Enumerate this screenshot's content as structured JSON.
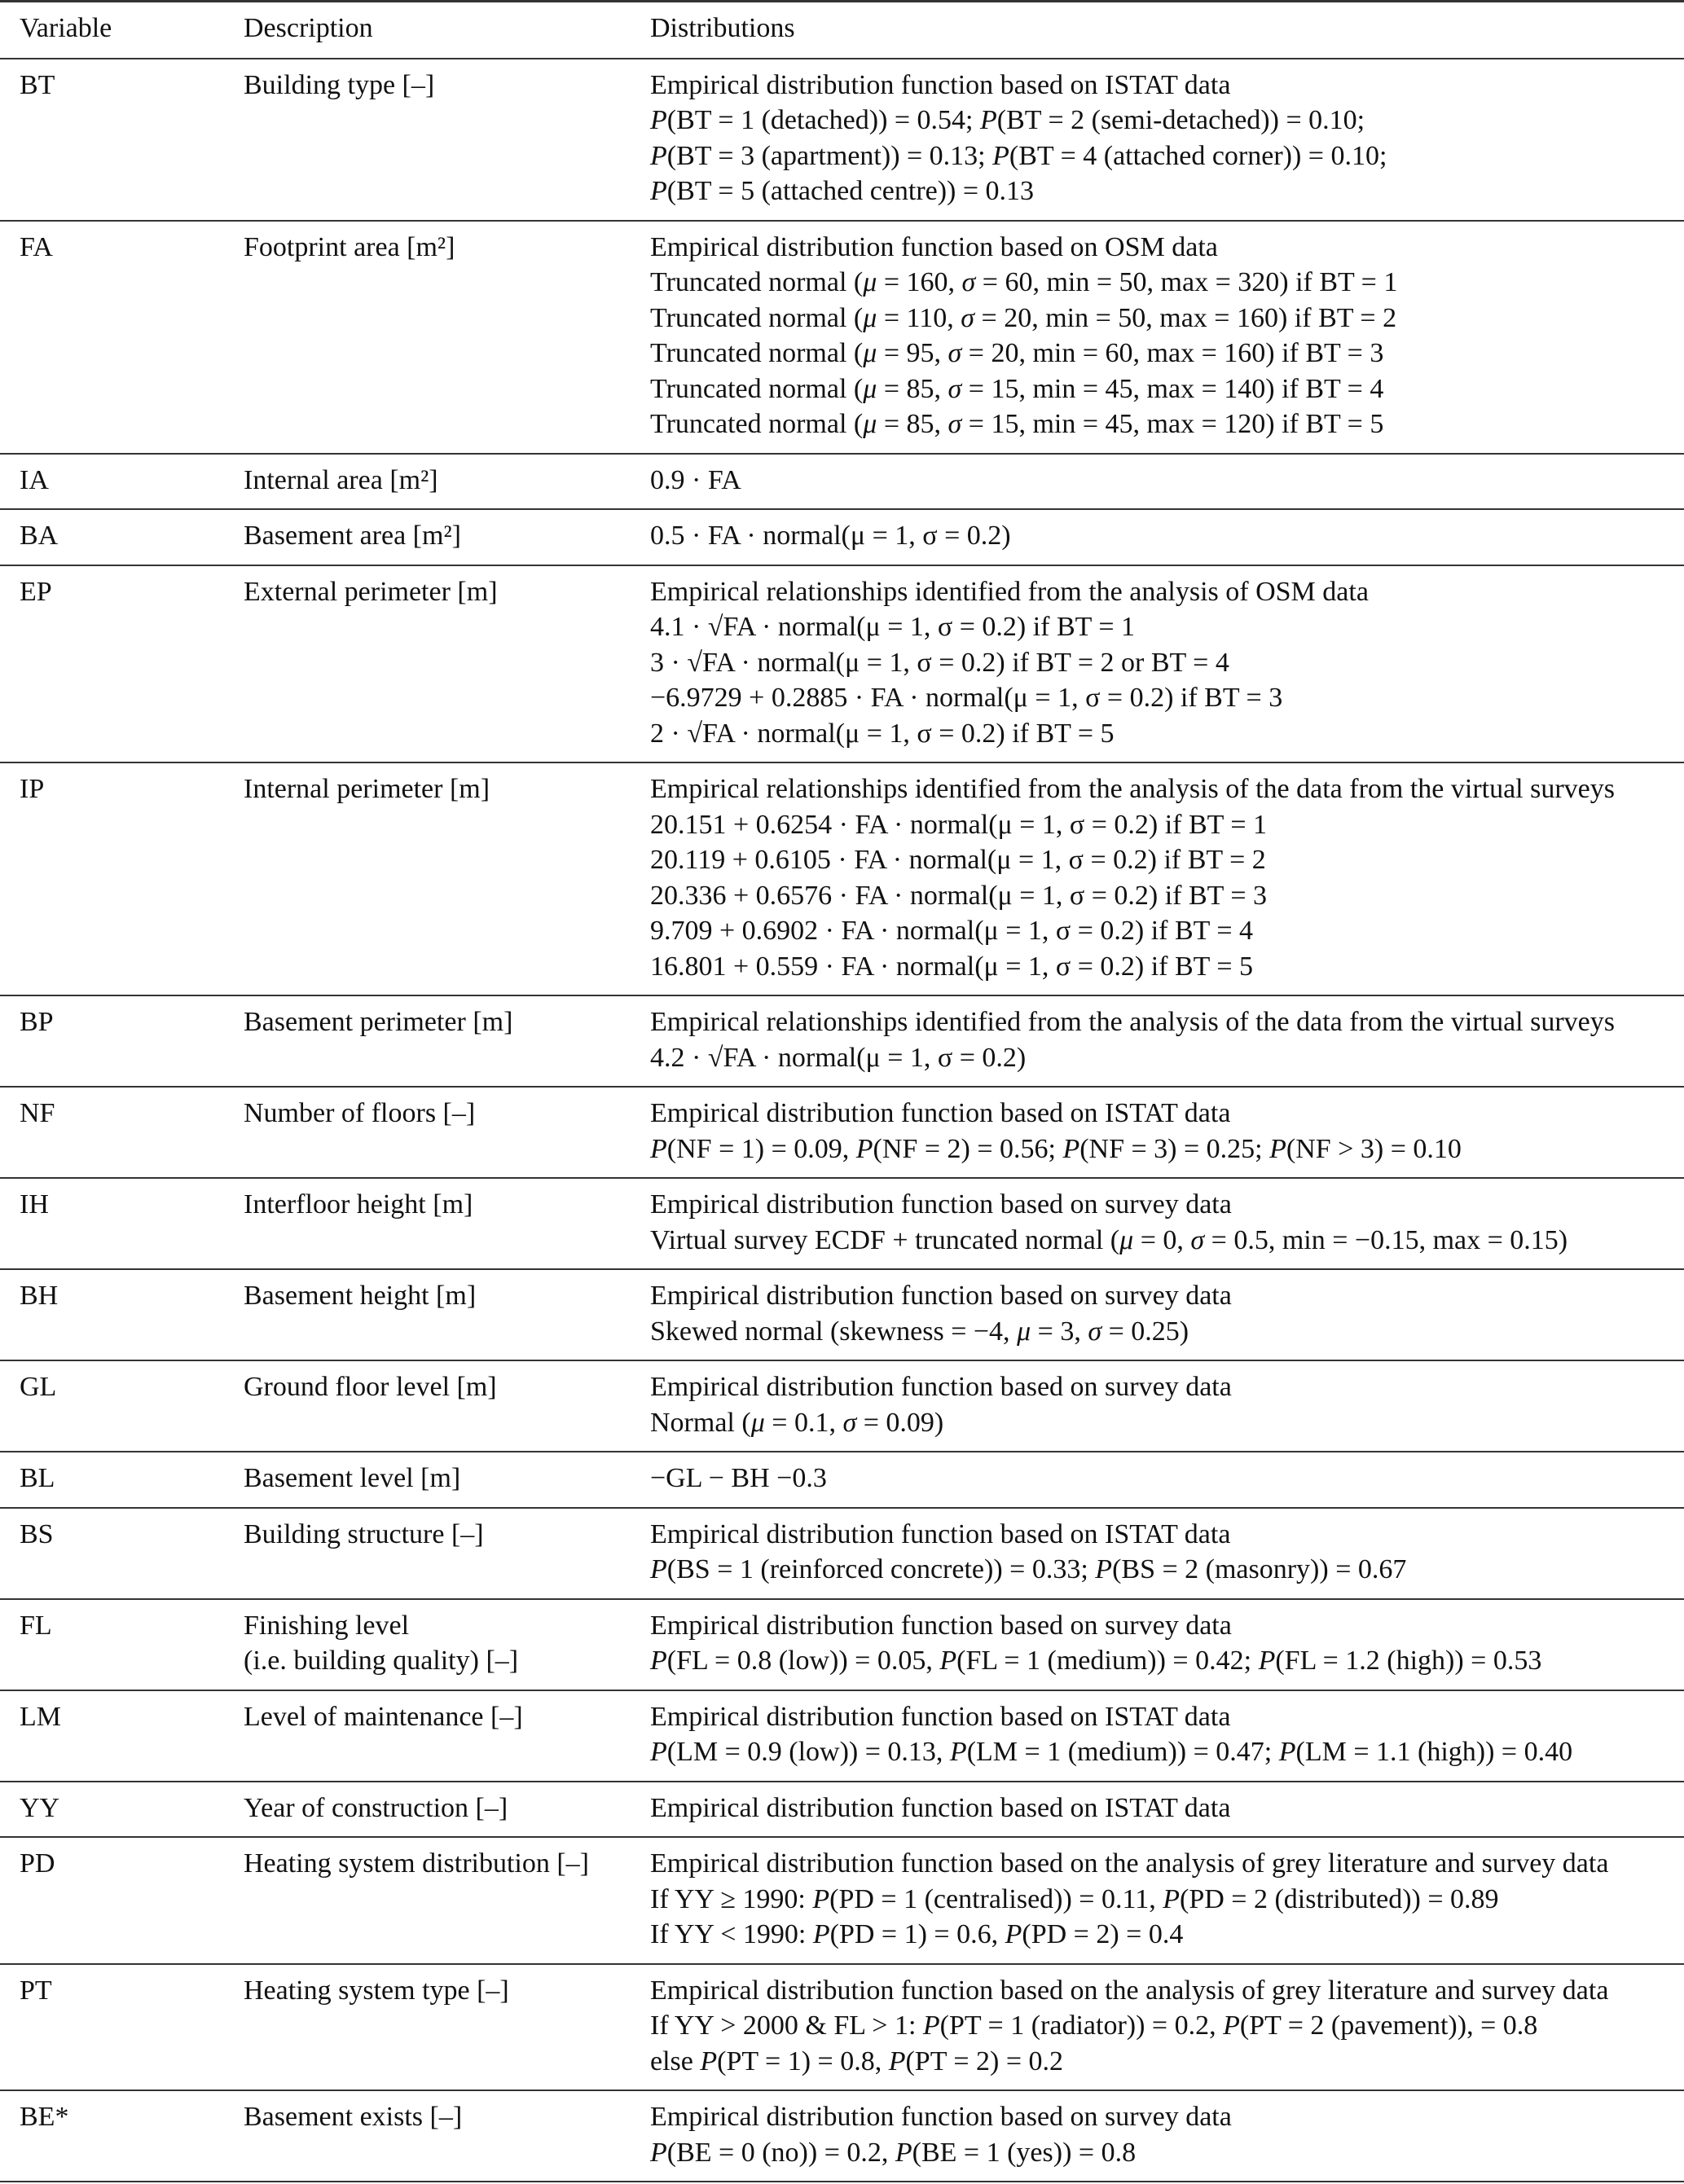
{
  "headers": {
    "variable": "Variable",
    "description": "Description",
    "distributions": "Distributions"
  },
  "rows": [
    {
      "variable": "BT",
      "description": [
        "Building type [–]"
      ],
      "distributions": [
        "Empirical distribution function based on ISTAT data",
        "P(BT = 1 (detached)) = 0.54; P(BT = 2 (semi-detached)) = 0.10;",
        "P(BT = 3 (apartment)) = 0.13; P(BT = 4 (attached corner)) = 0.10;",
        "P(BT = 5 (attached centre)) = 0.13"
      ]
    },
    {
      "variable": "FA",
      "description": [
        "Footprint area [m²]"
      ],
      "distributions": [
        "Empirical distribution function based on OSM data",
        "Truncated normal (μ = 160, σ = 60, min = 50, max = 320) if BT = 1",
        "Truncated normal (μ = 110, σ = 20, min = 50, max = 160) if BT = 2",
        "Truncated normal (μ = 95, σ = 20, min = 60, max = 160) if BT = 3",
        "Truncated normal (μ = 85, σ = 15, min = 45, max = 140) if BT = 4",
        "Truncated normal (μ = 85, σ = 15, min = 45, max = 120) if BT = 5"
      ]
    },
    {
      "variable": "IA",
      "description": [
        "Internal area [m²]"
      ],
      "distributions": [
        "0.9 · FA"
      ]
    },
    {
      "variable": "BA",
      "description": [
        "Basement area [m²]"
      ],
      "distributions": [
        "0.5 · FA · normal(μ = 1, σ = 0.2)"
      ]
    },
    {
      "variable": "EP",
      "description": [
        "External perimeter [m]"
      ],
      "distributions": [
        "Empirical relationships identified from the analysis of OSM data",
        "4.1 · √FA · normal(μ = 1, σ = 0.2) if BT = 1",
        "3 · √FA · normal(μ = 1, σ = 0.2) if BT = 2 or BT = 4",
        "−6.9729 + 0.2885 · FA · normal(μ = 1, σ = 0.2) if BT = 3",
        "2 · √FA · normal(μ = 1, σ = 0.2) if BT = 5"
      ]
    },
    {
      "variable": "IP",
      "description": [
        "Internal perimeter [m]"
      ],
      "distributions": [
        "Empirical relationships identified from the analysis of the data from the virtual surveys",
        "20.151 + 0.6254 · FA · normal(μ = 1, σ = 0.2) if BT = 1",
        "20.119 + 0.6105 · FA · normal(μ = 1, σ = 0.2) if BT = 2",
        "20.336 + 0.6576 · FA · normal(μ = 1, σ = 0.2) if BT = 3",
        "9.709 + 0.6902 · FA · normal(μ = 1, σ = 0.2) if BT = 4",
        "16.801 + 0.559 · FA · normal(μ = 1, σ = 0.2) if BT = 5"
      ]
    },
    {
      "variable": "BP",
      "description": [
        "Basement perimeter [m]"
      ],
      "distributions": [
        "Empirical relationships identified from the analysis of the data from the virtual surveys",
        "4.2 · √FA · normal(μ = 1, σ = 0.2)"
      ]
    },
    {
      "variable": "NF",
      "description": [
        "Number of floors [–]"
      ],
      "distributions": [
        "Empirical distribution function based on ISTAT data",
        "P(NF = 1) = 0.09, P(NF = 2) = 0.56; P(NF = 3) = 0.25; P(NF > 3) = 0.10"
      ]
    },
    {
      "variable": "IH",
      "description": [
        "Interfloor height [m]"
      ],
      "distributions": [
        "Empirical distribution function based on survey data",
        "Virtual survey ECDF + truncated normal (μ = 0, σ = 0.5, min = −0.15, max = 0.15)"
      ]
    },
    {
      "variable": "BH",
      "description": [
        "Basement height [m]"
      ],
      "distributions": [
        "Empirical distribution function based on survey data",
        "Skewed normal (skewness = −4, μ = 3, σ = 0.25)"
      ]
    },
    {
      "variable": "GL",
      "description": [
        "Ground floor level [m]"
      ],
      "distributions": [
        "Empirical distribution function based on survey data",
        "Normal (μ = 0.1, σ = 0.09)"
      ]
    },
    {
      "variable": "BL",
      "description": [
        "Basement level [m]"
      ],
      "distributions": [
        "−GL − BH −0.3"
      ]
    },
    {
      "variable": "BS",
      "description": [
        "Building structure [–]"
      ],
      "distributions": [
        "Empirical distribution function based on ISTAT data",
        "P(BS = 1 (reinforced concrete)) = 0.33; P(BS = 2 (masonry)) = 0.67"
      ]
    },
    {
      "variable": "FL",
      "description": [
        "Finishing level",
        "(i.e. building quality) [–]"
      ],
      "distributions": [
        "Empirical distribution function based on survey data",
        "P(FL = 0.8 (low)) = 0.05, P(FL = 1 (medium)) = 0.42; P(FL = 1.2 (high)) = 0.53"
      ]
    },
    {
      "variable": "LM",
      "description": [
        "Level of maintenance [–]"
      ],
      "distributions": [
        "Empirical distribution function based on ISTAT data",
        "P(LM = 0.9 (low)) = 0.13, P(LM = 1 (medium)) = 0.47; P(LM = 1.1 (high)) = 0.40"
      ]
    },
    {
      "variable": "YY",
      "description": [
        "Year of construction [–]"
      ],
      "distributions": [
        "Empirical distribution function based on ISTAT data"
      ]
    },
    {
      "variable": "PD",
      "description": [
        "Heating system distribution [–]"
      ],
      "distributions": [
        "Empirical distribution function based on the analysis of grey literature and survey data",
        "If YY ≥ 1990: P(PD = 1 (centralised)) = 0.11, P(PD = 2 (distributed)) = 0.89",
        "If YY < 1990: P(PD = 1) = 0.6, P(PD = 2) = 0.4"
      ]
    },
    {
      "variable": "PT",
      "description": [
        "Heating system type [–]"
      ],
      "distributions": [
        "Empirical distribution function based on the analysis of grey literature and survey data",
        "If YY > 2000 & FL > 1: P(PT = 1 (radiator)) = 0.2, P(PT = 2 (pavement)), = 0.8",
        "else P(PT = 1) = 0.8, P(PT = 2) = 0.2"
      ]
    },
    {
      "variable": "BE*",
      "description": [
        "Basement exists [–]"
      ],
      "distributions": [
        "Empirical distribution function based on survey data",
        "P(BE = 0 (no)) = 0.2, P(BE = 1 (yes)) = 0.8"
      ]
    }
  ]
}
